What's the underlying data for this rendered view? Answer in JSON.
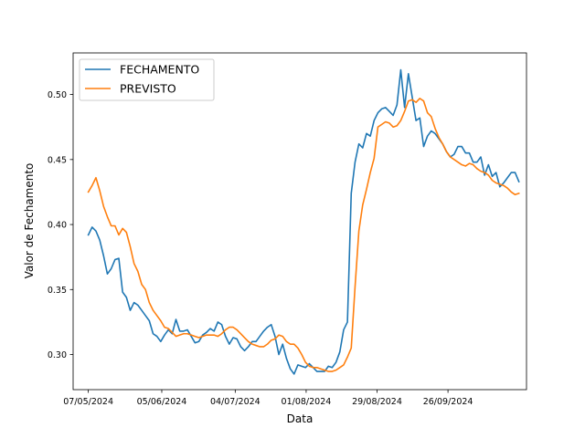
{
  "chart_data": {
    "type": "line",
    "title": "",
    "xlabel": "Data",
    "ylabel": "Valor de Fechamento",
    "x_start": "07/05/2024",
    "x_end": "24/10/2024",
    "xlim": [
      "01/05/2024",
      "27/10/2024"
    ],
    "ylim": [
      0.273,
      0.532
    ],
    "x_ticks": [
      "07/05/2024",
      "05/06/2024",
      "04/07/2024",
      "01/08/2024",
      "29/08/2024",
      "26/09/2024"
    ],
    "y_ticks": [
      "0.30",
      "0.35",
      "0.40",
      "0.45",
      "0.50"
    ],
    "legend_position": "top-left",
    "grid": false,
    "series": [
      {
        "name": "FECHAMENTO",
        "color": "#1f77b4",
        "values": [
          0.392,
          0.398,
          0.395,
          0.388,
          0.376,
          0.362,
          0.366,
          0.373,
          0.374,
          0.348,
          0.344,
          0.334,
          0.34,
          0.338,
          0.334,
          0.33,
          0.326,
          0.316,
          0.314,
          0.31,
          0.315,
          0.319,
          0.316,
          0.327,
          0.318,
          0.318,
          0.319,
          0.314,
          0.309,
          0.31,
          0.315,
          0.317,
          0.32,
          0.318,
          0.325,
          0.323,
          0.314,
          0.308,
          0.313,
          0.312,
          0.306,
          0.303,
          0.306,
          0.31,
          0.31,
          0.314,
          0.318,
          0.321,
          0.323,
          0.314,
          0.3,
          0.308,
          0.297,
          0.289,
          0.285,
          0.292,
          0.291,
          0.29,
          0.293,
          0.29,
          0.287,
          0.287,
          0.287,
          0.291,
          0.29,
          0.294,
          0.302,
          0.319,
          0.325,
          0.424,
          0.448,
          0.462,
          0.459,
          0.47,
          0.468,
          0.48,
          0.486,
          0.489,
          0.49,
          0.487,
          0.484,
          0.492,
          0.519,
          0.49,
          0.516,
          0.498,
          0.48,
          0.482,
          0.46,
          0.468,
          0.472,
          0.47,
          0.466,
          0.462,
          0.456,
          0.452,
          0.454,
          0.46,
          0.46,
          0.455,
          0.455,
          0.448,
          0.448,
          0.452,
          0.438,
          0.446,
          0.437,
          0.44,
          0.429,
          0.432,
          0.436,
          0.44,
          0.44,
          0.433
        ]
      },
      {
        "name": "PREVISTO",
        "color": "#ff7f0e",
        "values": [
          0.425,
          0.43,
          0.436,
          0.426,
          0.414,
          0.406,
          0.399,
          0.399,
          0.392,
          0.397,
          0.394,
          0.383,
          0.37,
          0.364,
          0.354,
          0.35,
          0.34,
          0.334,
          0.33,
          0.326,
          0.321,
          0.32,
          0.317,
          0.314,
          0.315,
          0.316,
          0.316,
          0.315,
          0.314,
          0.313,
          0.314,
          0.315,
          0.315,
          0.315,
          0.314,
          0.316,
          0.319,
          0.321,
          0.321,
          0.319,
          0.316,
          0.313,
          0.31,
          0.308,
          0.307,
          0.306,
          0.306,
          0.308,
          0.311,
          0.312,
          0.315,
          0.314,
          0.31,
          0.308,
          0.308,
          0.305,
          0.3,
          0.294,
          0.291,
          0.29,
          0.29,
          0.289,
          0.288,
          0.287,
          0.287,
          0.288,
          0.29,
          0.292,
          0.298,
          0.305,
          0.352,
          0.395,
          0.415,
          0.427,
          0.44,
          0.451,
          0.475,
          0.477,
          0.479,
          0.478,
          0.475,
          0.476,
          0.48,
          0.487,
          0.495,
          0.496,
          0.494,
          0.497,
          0.495,
          0.486,
          0.483,
          0.474,
          0.467,
          0.462,
          0.456,
          0.452,
          0.45,
          0.448,
          0.446,
          0.445,
          0.447,
          0.446,
          0.443,
          0.441,
          0.44,
          0.438,
          0.434,
          0.432,
          0.431,
          0.43,
          0.428,
          0.425,
          0.423,
          0.424
        ]
      }
    ]
  }
}
